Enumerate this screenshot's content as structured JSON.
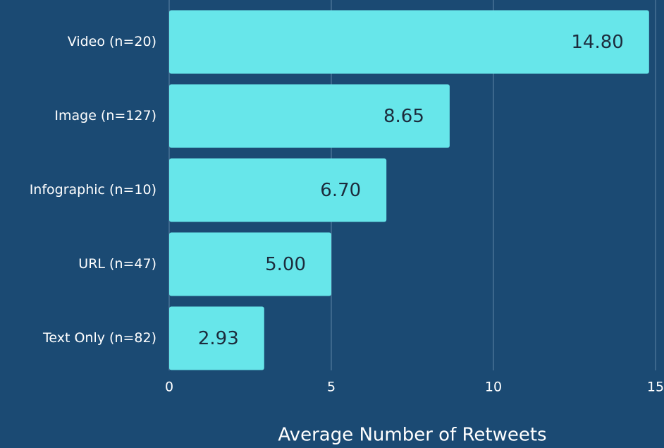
{
  "chart_data": {
    "type": "bar",
    "orientation": "horizontal",
    "categories": [
      "Video (n=20)",
      "Image (n=127)",
      "Infographic (n=10)",
      "URL (n=47)",
      "Text Only (n=82)"
    ],
    "values": [
      14.8,
      8.65,
      6.7,
      5.0,
      2.93
    ],
    "value_labels": [
      "14.80",
      "8.65",
      "6.70",
      "5.00",
      "2.93"
    ],
    "color": "#67e6ea",
    "xlabel": "Average Number of Retweets",
    "xlim": [
      0,
      15
    ],
    "xticks": [
      0,
      5,
      10,
      15
    ],
    "grid": true
  }
}
